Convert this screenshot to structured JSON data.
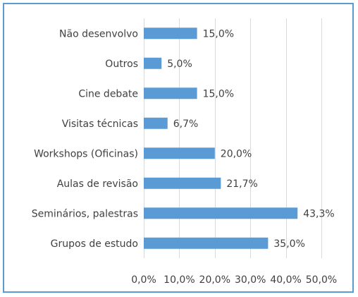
{
  "chart_data": {
    "type": "bar",
    "orientation": "horizontal",
    "categories": [
      "Não desenvolvo",
      "Outros",
      "Cine debate",
      "Visitas técnicas",
      "Workshops (Oficinas)",
      "Aulas de revisão",
      "Seminários, palestras",
      "Grupos de estudo"
    ],
    "values": [
      15.0,
      5.0,
      15.0,
      6.7,
      20.0,
      21.7,
      43.3,
      35.0
    ],
    "value_labels": [
      "15,0%",
      "5,0%",
      "15,0%",
      "6,7%",
      "20,0%",
      "21,7%",
      "43,3%",
      "35,0%"
    ],
    "title": "",
    "xlabel": "",
    "ylabel": "",
    "xlim": [
      0,
      50
    ],
    "x_ticks": [
      0,
      10,
      20,
      30,
      40,
      50
    ],
    "x_tick_labels": [
      "0,0%",
      "10,0%",
      "20,0%",
      "30,0%",
      "40,0%",
      "50,0%"
    ],
    "grid": true,
    "legend": "none",
    "bar_color": "#5b9bd5",
    "border_color": "#5b9bd5"
  }
}
